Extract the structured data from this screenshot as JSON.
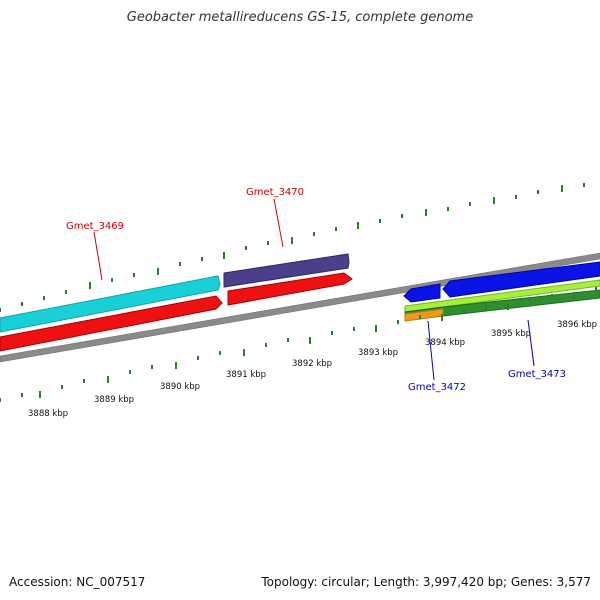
{
  "title": "Geobacter metallireducens GS-15, complete genome",
  "footer": {
    "accession": "Accession: NC_007517",
    "topology": "Topology: circular; Length: 3,997,420 bp; Genes: 3,577"
  },
  "colors": {
    "backbone": "#8a8a8a",
    "tick": "#2e7d2e",
    "label_red": "#cc0000",
    "label_blue": "#0000cc"
  },
  "scale_labels": [
    "3888 kbp",
    "3889 kbp",
    "3890 kbp",
    "3891 kbp",
    "3892 kbp",
    "3893 kbp",
    "3894 kbp",
    "3895 kbp",
    "3896 kbp"
  ],
  "genes": [
    {
      "name": "Gmet_3469",
      "color": "#19d0d6"
    },
    {
      "name": "Gmet_3470",
      "color": "#4b3f8c"
    },
    {
      "name": "Gmet_3472",
      "color": "#0000cc"
    },
    {
      "name": "Gmet_3473",
      "color": "#0000cc"
    }
  ],
  "features": {
    "red": "#ee1111",
    "blue": "#0a14e6",
    "lightgreen": "#a6ef3c",
    "green": "#2f8f2f",
    "orange": "#f09a1a",
    "cyan": "#19d0d6",
    "purple": "#4b3f8c"
  }
}
